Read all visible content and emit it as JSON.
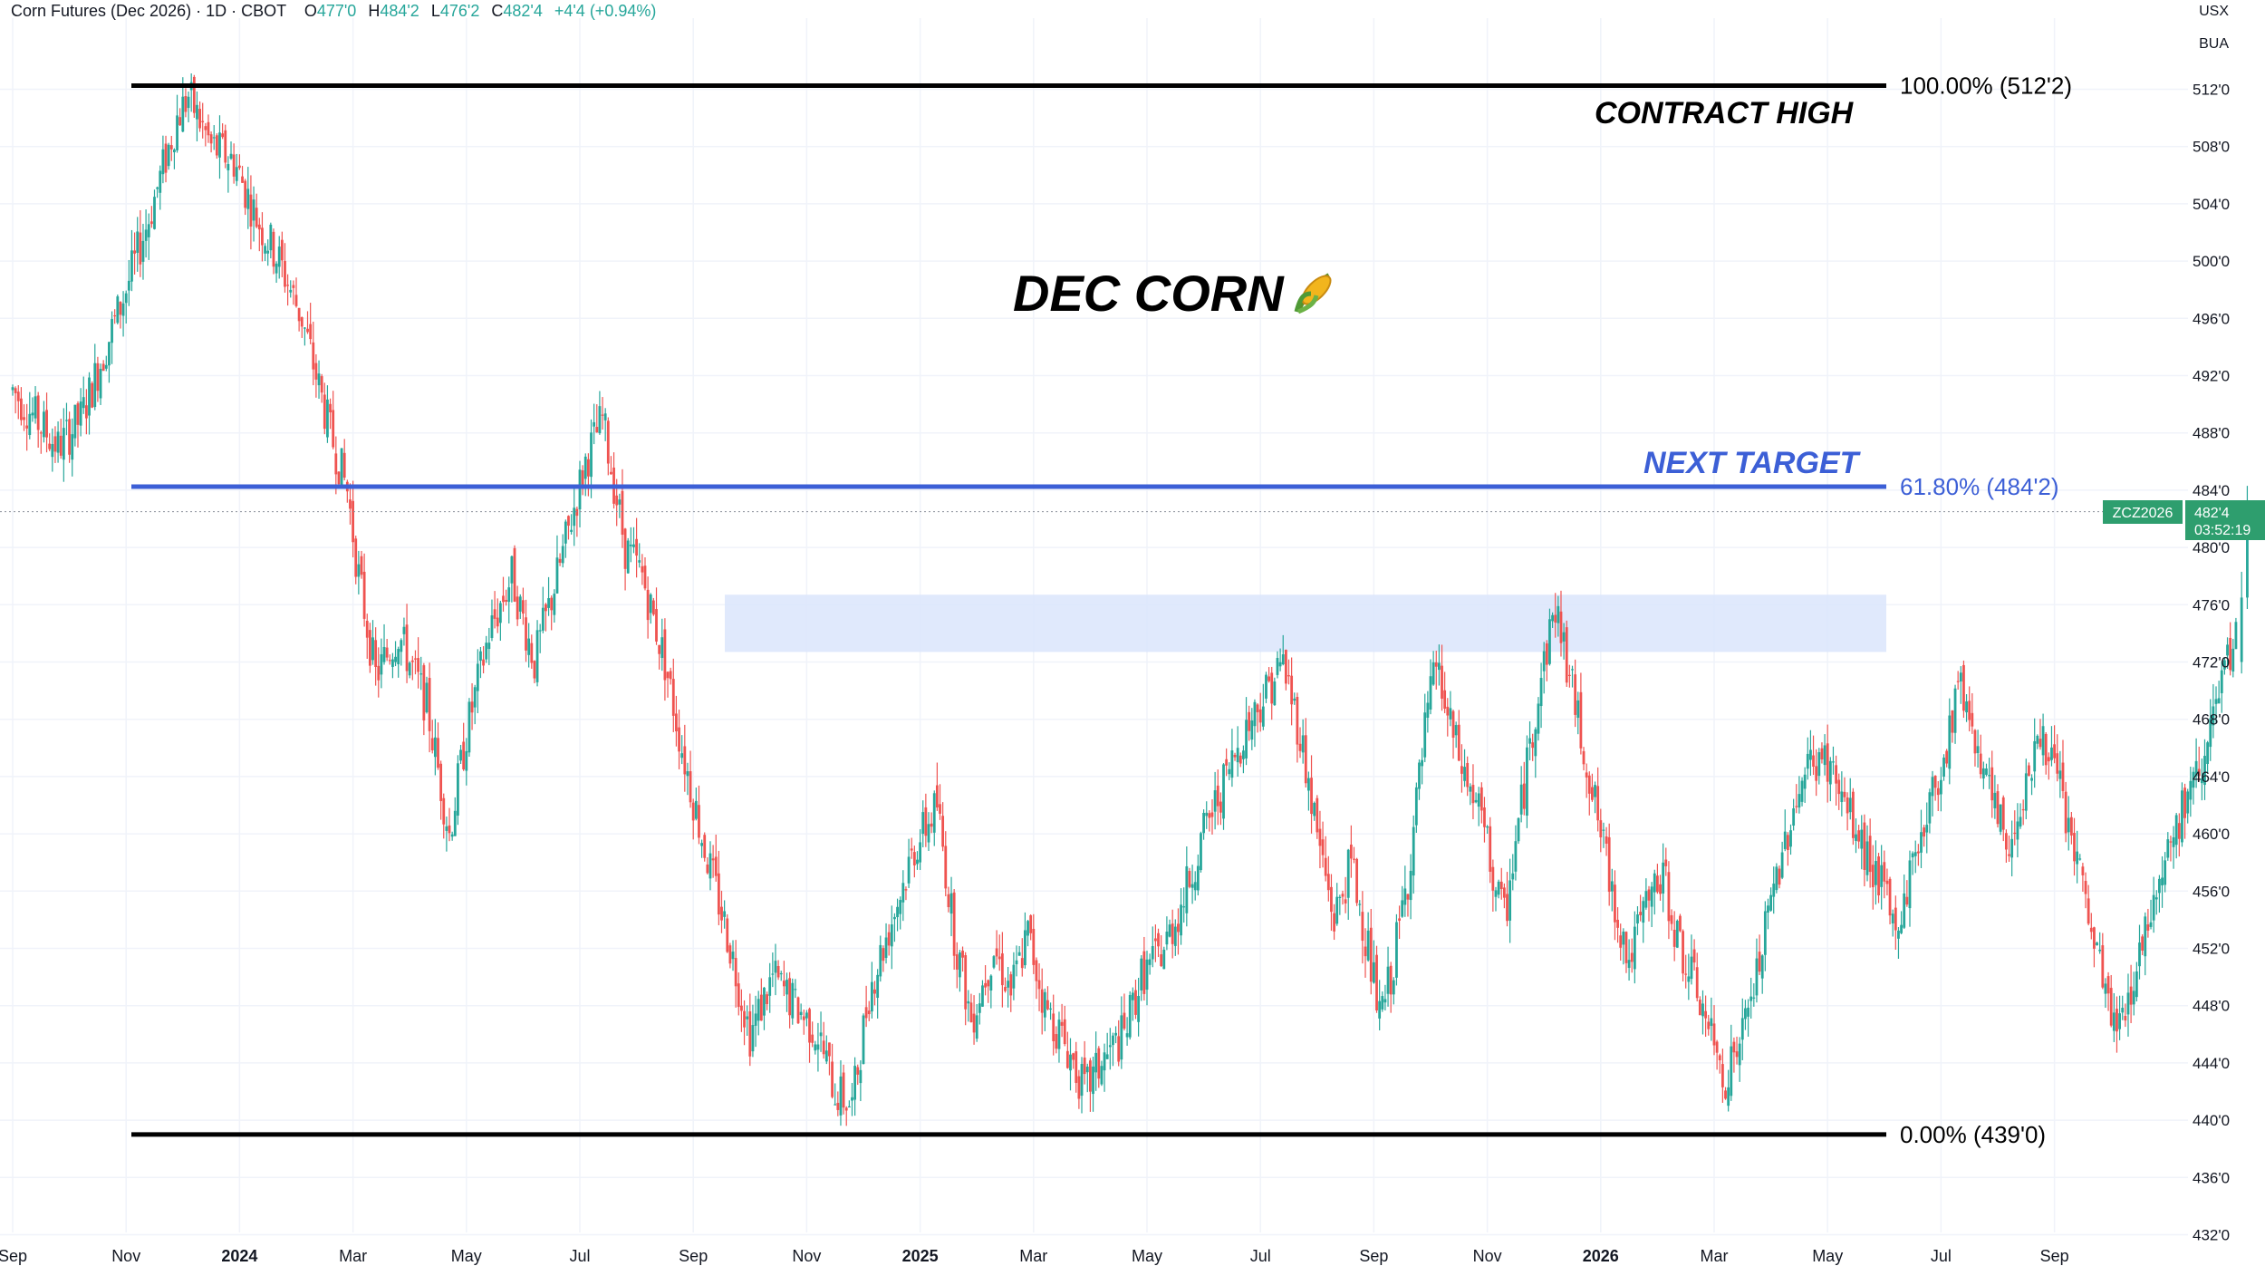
{
  "header": {
    "symbol_title": "Corn Futures (Dec 2026) · 1D · CBOT",
    "open_label": "O",
    "open_value": "477'0",
    "high_label": "H",
    "high_value": "484'2",
    "low_label": "L",
    "low_value": "476'2",
    "close_label": "C",
    "close_value": "482'4",
    "change": "+4'4 (+0.94%)"
  },
  "units": {
    "currency": "USX",
    "unit": "BUA"
  },
  "colors": {
    "up": "#26a69a",
    "down": "#ef5350",
    "fib_line": "#000000",
    "target_line": "#3c5fd6",
    "zone": "#dbe5fb",
    "last_price": "#2e9e6e",
    "grid": "#f0f3fa"
  },
  "annotations": {
    "title": "DEC CORN",
    "title_icon": "corn-icon",
    "contract_high": "CONTRACT HIGH",
    "next_target": "NEXT TARGET",
    "fib_100": "100.00% (512'2)",
    "fib_618": "61.80% (484'2)",
    "fib_0": "0.00% (439'0)"
  },
  "last_price_tag": {
    "symbol": "ZCZ2026",
    "price": "482'4",
    "countdown": "03:52:19"
  },
  "chart_data": {
    "type": "candlestick",
    "title": "DEC CORN",
    "price_ticks": [
      "512'0",
      "508'0",
      "504'0",
      "500'0",
      "496'0",
      "492'0",
      "488'0",
      "484'0",
      "480'0",
      "476'0",
      "472'0",
      "468'0",
      "464'0",
      "460'0",
      "456'0",
      "452'0",
      "448'0",
      "444'0",
      "440'0",
      "436'0",
      "432'0"
    ],
    "date_ticks": [
      "Sep",
      "Nov",
      "2024",
      "Mar",
      "May",
      "Jul",
      "Sep",
      "Nov",
      "2025",
      "Mar",
      "May",
      "Jul",
      "Sep",
      "Nov",
      "2026",
      "Mar",
      "May",
      "Jul",
      "Sep"
    ],
    "ylim": [
      431,
      517
    ],
    "fib_levels": [
      {
        "label": "100.00% (512'2)",
        "value": 512.25
      },
      {
        "label": "61.80% (484'2)",
        "value": 484.25
      },
      {
        "label": "0.00% (439'0)",
        "value": 439.0
      }
    ],
    "resistance_zone": {
      "low": 472.7,
      "high": 476.7
    },
    "last_price": 482.5,
    "close_path": [
      [
        0,
        491
      ],
      [
        0.8,
        487
      ],
      [
        1.2,
        489
      ],
      [
        2.0,
        498
      ],
      [
        2.4,
        503
      ],
      [
        2.9,
        510
      ],
      [
        3.1,
        511.5
      ],
      [
        3.5,
        508
      ],
      [
        3.9,
        507
      ],
      [
        4.3,
        503
      ],
      [
        4.7,
        500
      ],
      [
        5.1,
        496
      ],
      [
        5.6,
        488
      ],
      [
        5.9,
        484
      ],
      [
        6.1,
        478
      ],
      [
        6.4,
        471
      ],
      [
        6.8,
        474
      ],
      [
        7.3,
        469
      ],
      [
        7.7,
        460
      ],
      [
        8.0,
        467
      ],
      [
        8.4,
        474
      ],
      [
        8.8,
        478
      ],
      [
        9.2,
        472
      ],
      [
        9.6,
        478
      ],
      [
        10.1,
        486
      ],
      [
        10.4,
        489
      ],
      [
        10.8,
        480
      ],
      [
        11.1,
        478
      ],
      [
        11.5,
        472
      ],
      [
        11.8,
        466
      ],
      [
        12.2,
        459
      ],
      [
        12.6,
        453
      ],
      [
        13.0,
        446
      ],
      [
        13.4,
        450
      ],
      [
        13.8,
        448
      ],
      [
        14.2,
        446
      ],
      [
        14.5,
        442
      ],
      [
        14.8,
        441
      ],
      [
        15.1,
        449
      ],
      [
        15.5,
        454
      ],
      [
        15.9,
        459
      ],
      [
        16.3,
        462
      ],
      [
        16.6,
        453
      ],
      [
        16.9,
        447
      ],
      [
        17.3,
        452
      ],
      [
        17.6,
        449
      ],
      [
        17.9,
        453
      ],
      [
        18.2,
        448
      ],
      [
        18.6,
        445
      ],
      [
        18.9,
        442
      ],
      [
        19.2,
        444
      ],
      [
        19.6,
        446
      ],
      [
        19.9,
        450
      ],
      [
        20.3,
        452
      ],
      [
        20.6,
        455
      ],
      [
        21.0,
        460
      ],
      [
        21.4,
        464
      ],
      [
        21.7,
        467
      ],
      [
        22.1,
        470
      ],
      [
        22.4,
        472
      ],
      [
        22.7,
        467
      ],
      [
        23.0,
        460
      ],
      [
        23.3,
        454
      ],
      [
        23.6,
        458
      ],
      [
        23.9,
        452
      ],
      [
        24.1,
        447
      ],
      [
        24.3,
        450
      ],
      [
        24.6,
        457
      ],
      [
        24.9,
        467
      ],
      [
        25.1,
        472
      ],
      [
        25.3,
        468
      ],
      [
        25.6,
        464
      ],
      [
        25.9,
        461
      ],
      [
        26.1,
        457
      ],
      [
        26.3,
        454
      ],
      [
        26.6,
        462
      ],
      [
        26.9,
        470
      ],
      [
        27.2,
        476
      ],
      [
        27.4,
        472
      ],
      [
        27.6,
        468
      ],
      [
        27.9,
        462
      ],
      [
        28.2,
        456
      ],
      [
        28.5,
        451
      ],
      [
        28.8,
        455
      ],
      [
        29.1,
        457
      ],
      [
        29.4,
        452
      ],
      [
        29.7,
        449
      ],
      [
        30.0,
        445
      ],
      [
        30.2,
        443
      ],
      [
        30.5,
        446
      ],
      [
        30.8,
        451
      ],
      [
        31.1,
        457
      ],
      [
        31.4,
        462
      ],
      [
        31.7,
        465
      ],
      [
        32.0,
        465
      ],
      [
        32.3,
        462
      ],
      [
        32.6,
        459
      ],
      [
        32.9,
        457
      ],
      [
        33.2,
        453
      ],
      [
        33.5,
        458
      ],
      [
        33.8,
        462
      ],
      [
        34.1,
        466
      ],
      [
        34.3,
        471
      ],
      [
        34.6,
        467
      ],
      [
        34.9,
        462
      ],
      [
        35.2,
        459
      ],
      [
        35.5,
        464
      ],
      [
        35.8,
        467
      ],
      [
        36.1,
        463
      ],
      [
        36.4,
        458
      ],
      [
        36.6,
        454
      ],
      [
        36.9,
        449
      ],
      [
        37.1,
        446
      ],
      [
        37.4,
        450
      ],
      [
        37.7,
        455
      ],
      [
        37.9,
        458
      ],
      [
        38.2,
        461
      ],
      [
        38.5,
        464
      ],
      [
        38.8,
        468
      ],
      [
        39.0,
        471
      ],
      [
        39.2,
        473.5
      ]
    ]
  },
  "chart_data_x_axis_note": "",
  "x_axis": {
    "labels": [
      "Sep",
      "Nov",
      "2024",
      "Mar",
      "May",
      "Jul",
      "Sep",
      "Nov",
      "2025",
      "Mar",
      "May",
      "Jul",
      "Sep",
      "Nov",
      "2026",
      "Mar",
      "May",
      "Jul",
      "Sep"
    ]
  }
}
